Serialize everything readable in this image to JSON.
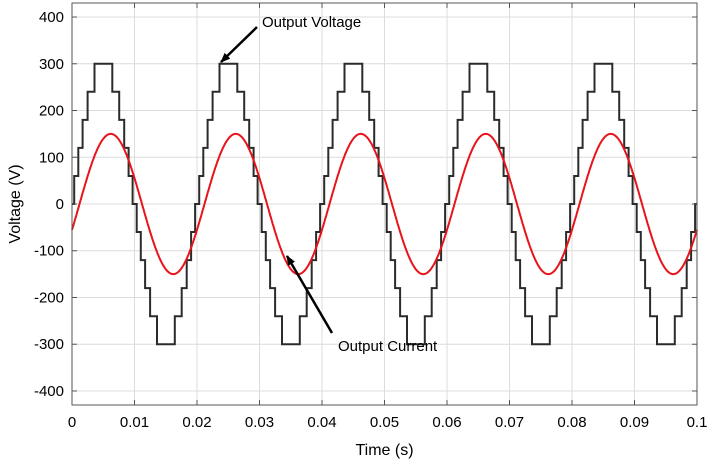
{
  "chart_data": {
    "type": "line",
    "xlabel": "Time (s)",
    "ylabel": "Voltage (V)",
    "xlim": [
      0,
      0.1
    ],
    "ylim": [
      -430,
      430
    ],
    "grid": true,
    "x_ticks": [
      0,
      0.01,
      0.02,
      0.03,
      0.04,
      0.05,
      0.06,
      0.07,
      0.08,
      0.09,
      0.1
    ],
    "x_tick_labels": [
      "0",
      "0.01",
      "0.02",
      "0.03",
      "0.04",
      "0.05",
      "0.06",
      "0.07",
      "0.08",
      "0.09",
      "0.1"
    ],
    "y_ticks": [
      -400,
      -300,
      -200,
      -100,
      0,
      100,
      200,
      300,
      400
    ],
    "y_tick_labels": [
      "-400",
      "-300",
      "-200",
      "-100",
      "0",
      "100",
      "200",
      "300",
      "400"
    ],
    "series": [
      {
        "name": "Output Voltage",
        "color": "#2b2b2b",
        "style": "staircase",
        "frequency_hz": 50,
        "amplitude": 300,
        "levels": [
          0,
          60,
          120,
          180,
          240,
          300
        ]
      },
      {
        "name": "Output Current",
        "color": "#e8141b",
        "style": "sinusoid",
        "frequency_hz": 50,
        "amplitude": 150,
        "phase_lag_s": 0.0012
      }
    ],
    "annotations": [
      {
        "text": "Output Voltage",
        "target_x": 0.0232,
        "target_y": 300
      },
      {
        "text": "Output Current",
        "target_x": 0.0345,
        "target_y": -120
      }
    ]
  }
}
